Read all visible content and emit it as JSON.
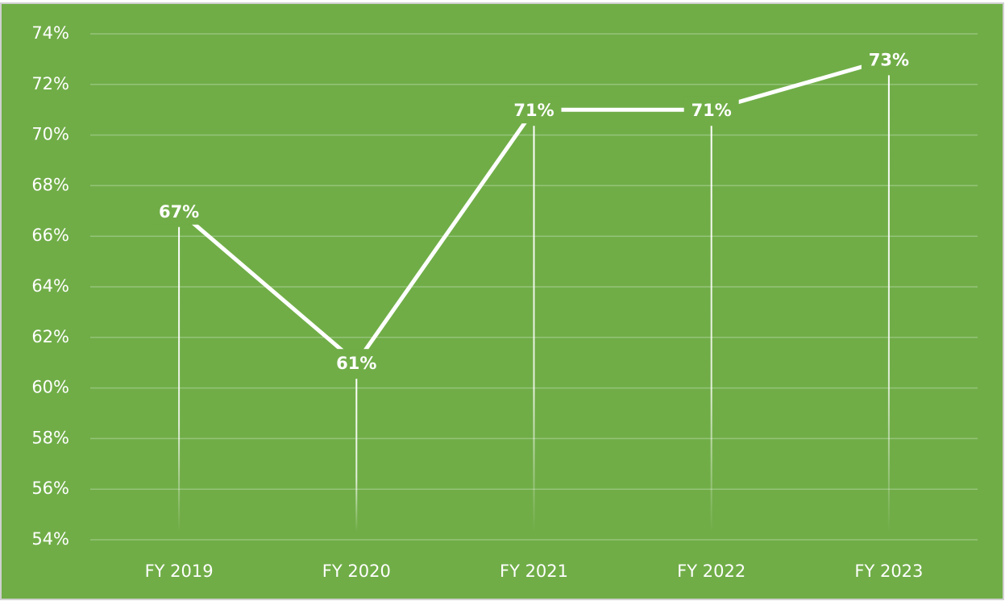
{
  "chart_data": {
    "type": "line",
    "categories": [
      "FY 2019",
      "FY 2020",
      "FY 2021",
      "FY 2022",
      "FY 2023"
    ],
    "values": [
      67,
      61,
      71,
      71,
      73
    ],
    "value_labels": [
      "67%",
      "61%",
      "71%",
      "71%",
      "73%"
    ],
    "color": "#ffffff",
    "background": "#70ad47",
    "ylim": [
      54,
      74
    ],
    "yticks": [
      {
        "value": 54,
        "label": "54%"
      },
      {
        "value": 56,
        "label": "56%"
      },
      {
        "value": 58,
        "label": "58%"
      },
      {
        "value": 60,
        "label": "60%"
      },
      {
        "value": 62,
        "label": "62%"
      },
      {
        "value": 64,
        "label": "64%"
      },
      {
        "value": 66,
        "label": "66%"
      },
      {
        "value": 68,
        "label": "68%"
      },
      {
        "value": 70,
        "label": "70%"
      },
      {
        "value": 72,
        "label": "72%"
      },
      {
        "value": 74,
        "label": "74%"
      }
    ],
    "grid": true,
    "drop_lines": true
  }
}
